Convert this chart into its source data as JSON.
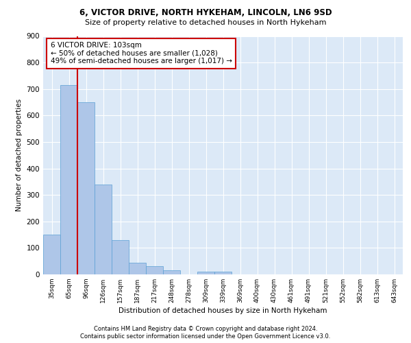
{
  "title1": "6, VICTOR DRIVE, NORTH HYKEHAM, LINCOLN, LN6 9SD",
  "title2": "Size of property relative to detached houses in North Hykeham",
  "xlabel": "Distribution of detached houses by size in North Hykeham",
  "ylabel": "Number of detached properties",
  "categories": [
    "35sqm",
    "65sqm",
    "96sqm",
    "126sqm",
    "157sqm",
    "187sqm",
    "217sqm",
    "248sqm",
    "278sqm",
    "309sqm",
    "339sqm",
    "369sqm",
    "400sqm",
    "430sqm",
    "461sqm",
    "491sqm",
    "521sqm",
    "552sqm",
    "582sqm",
    "613sqm",
    "643sqm"
  ],
  "values": [
    150,
    715,
    650,
    340,
    130,
    45,
    30,
    15,
    0,
    10,
    10,
    0,
    0,
    0,
    0,
    0,
    0,
    0,
    0,
    0,
    0
  ],
  "bar_color": "#aec6e8",
  "bar_edge_color": "#5a9fd4",
  "background_color": "#dce9f7",
  "grid_color": "#ffffff",
  "red_line_x": 1.5,
  "annotation_text": "6 VICTOR DRIVE: 103sqm\n← 50% of detached houses are smaller (1,028)\n49% of semi-detached houses are larger (1,017) →",
  "annotation_box_color": "#ffffff",
  "annotation_box_edge": "#cc0000",
  "red_line_color": "#cc0000",
  "ylim": [
    0,
    900
  ],
  "yticks": [
    0,
    100,
    200,
    300,
    400,
    500,
    600,
    700,
    800,
    900
  ],
  "footnote1": "Contains HM Land Registry data © Crown copyright and database right 2024.",
  "footnote2": "Contains public sector information licensed under the Open Government Licence v3.0."
}
